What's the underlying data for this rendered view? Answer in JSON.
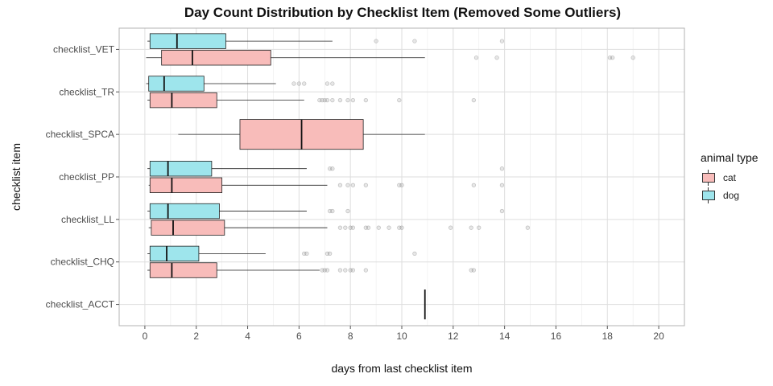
{
  "chart_data": {
    "type": "boxplot",
    "title": "Day Count Distribution by Checklist Item (Removed Some Outliers)",
    "xlabel": "days from last checklist item",
    "ylabel": "checklist item",
    "xlim": [
      -1,
      21
    ],
    "xticks": [
      0,
      2,
      4,
      6,
      8,
      10,
      12,
      14,
      16,
      18,
      20
    ],
    "orientation": "horizontal",
    "grid": true,
    "legend": {
      "title": "animal type",
      "placement": "right",
      "entries": [
        {
          "name": "cat",
          "color": "#f8bcba"
        },
        {
          "name": "dog",
          "color": "#9ee5ec"
        }
      ]
    },
    "categories": [
      "checklist_ACCT",
      "checklist_CHQ",
      "checklist_LL",
      "checklist_PP",
      "checklist_SPCA",
      "checklist_TR",
      "checklist_VET"
    ],
    "series": [
      {
        "name": "cat",
        "color": "#f8bcba",
        "boxes": [
          {
            "category": "checklist_ACCT",
            "min": 10.9,
            "q1": 10.9,
            "median": 10.9,
            "q3": 10.9,
            "max": 10.9,
            "outliers": []
          },
          {
            "category": "checklist_CHQ",
            "min": 0.1,
            "q1": 0.2,
            "median": 1.05,
            "q3": 2.8,
            "max": 6.8,
            "outliers": [
              6.9,
              7.0,
              7.1,
              7.6,
              7.8,
              8.0,
              8.1,
              8.6,
              12.7,
              12.8
            ]
          },
          {
            "category": "checklist_LL",
            "min": 0.15,
            "q1": 0.25,
            "median": 1.1,
            "q3": 3.1,
            "max": 7.1,
            "outliers": [
              7.6,
              7.8,
              8.0,
              8.1,
              8.6,
              8.7,
              9.1,
              9.5,
              9.9,
              10.0,
              11.9,
              12.7,
              13.0,
              14.9
            ]
          },
          {
            "category": "checklist_PP",
            "min": 0.15,
            "q1": 0.2,
            "median": 1.05,
            "q3": 3.0,
            "max": 7.1,
            "outliers": [
              7.6,
              7.9,
              8.1,
              8.6,
              9.9,
              10.0,
              12.8,
              13.9
            ]
          },
          {
            "category": "checklist_SPCA",
            "min": 1.3,
            "q1": 3.7,
            "median": 6.1,
            "q3": 8.5,
            "max": 10.9,
            "outliers": []
          },
          {
            "category": "checklist_TR",
            "min": 0.1,
            "q1": 0.2,
            "median": 1.05,
            "q3": 2.8,
            "max": 6.2,
            "outliers": [
              6.8,
              6.9,
              7.0,
              7.1,
              7.3,
              7.6,
              7.9,
              8.1,
              8.6,
              9.9,
              12.8
            ]
          },
          {
            "category": "checklist_VET",
            "min": 0.05,
            "q1": 0.65,
            "median": 1.85,
            "q3": 4.9,
            "max": 10.9,
            "outliers": [
              12.9,
              13.7,
              18.1,
              18.2,
              19.0
            ]
          }
        ]
      },
      {
        "name": "dog",
        "color": "#9ee5ec",
        "boxes": [
          {
            "category": "checklist_CHQ",
            "min": 0.1,
            "q1": 0.2,
            "median": 0.85,
            "q3": 2.1,
            "max": 4.7,
            "outliers": [
              6.2,
              6.3,
              7.1,
              7.2,
              10.5
            ]
          },
          {
            "category": "checklist_LL",
            "min": 0.1,
            "q1": 0.2,
            "median": 0.9,
            "q3": 2.9,
            "max": 6.3,
            "outliers": [
              7.2,
              7.3,
              7.9,
              13.9
            ]
          },
          {
            "category": "checklist_PP",
            "min": 0.1,
            "q1": 0.2,
            "median": 0.9,
            "q3": 2.6,
            "max": 6.3,
            "outliers": [
              7.2,
              7.3,
              13.9
            ]
          },
          {
            "category": "checklist_TR",
            "min": 0.05,
            "q1": 0.15,
            "median": 0.75,
            "q3": 2.3,
            "max": 5.1,
            "outliers": [
              5.8,
              6.0,
              6.2,
              7.1,
              7.3
            ]
          },
          {
            "category": "checklist_VET",
            "min": 0.1,
            "q1": 0.2,
            "median": 1.25,
            "q3": 3.15,
            "max": 7.3,
            "outliers": [
              9.0,
              10.5,
              13.9
            ]
          }
        ]
      }
    ]
  }
}
